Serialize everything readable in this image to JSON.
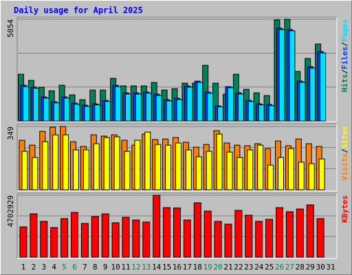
{
  "chart_data": {
    "type": "bar",
    "title": "Daily usage for April 2025",
    "categories": [
      "1",
      "2",
      "3",
      "4",
      "5",
      "6",
      "7",
      "8",
      "9",
      "10",
      "11",
      "12",
      "13",
      "14",
      "15",
      "16",
      "17",
      "18",
      "19",
      "20",
      "21",
      "22",
      "23",
      "24",
      "25",
      "26",
      "27",
      "28",
      "29",
      "30",
      "31"
    ],
    "category_colors": [
      "#000000",
      "#000000",
      "#000000",
      "#000000",
      "#00805c",
      "#00805c",
      "#000000",
      "#000000",
      "#000000",
      "#000000",
      "#000000",
      "#00805c",
      "#00805c",
      "#000000",
      "#000000",
      "#000000",
      "#000000",
      "#000000",
      "#00805c",
      "#00805c",
      "#000000",
      "#000000",
      "#000000",
      "#000000",
      "#000000",
      "#00805c",
      "#00805c",
      "#000000",
      "#000000",
      "#000000",
      "#000000"
    ],
    "legend_separator": "/",
    "panels": [
      {
        "ylim": [
          0,
          5054
        ],
        "yticks": [
          5054
        ],
        "series": [
          {
            "name": "Pages",
            "color": "#00e0ff",
            "values": [
              1710,
              1630,
              1140,
              900,
              1140,
              830,
              730,
              800,
              970,
              1710,
              1340,
              1340,
              1380,
              1270,
              1000,
              1070,
              1680,
              1920,
              1380,
              700,
              1650,
              1340,
              970,
              800,
              760,
              4542,
              4480,
              1920,
              2630,
              3380,
              null
            ]
          },
          {
            "name": "Files",
            "color": "#0040ff",
            "values": [
              1776,
              1690,
              1195,
              956,
              1195,
              888,
              785,
              854,
              1025,
              1776,
              1400,
              1400,
              1435,
              1332,
              1059,
              1127,
              1742,
              1980,
              1435,
              751,
              1708,
              1400,
              1025,
              854,
              820,
              4610,
              4542,
              1980,
              2698,
              3449,
              null
            ]
          },
          {
            "name": "Hits",
            "color": "#00805c",
            "values": [
              2322,
              2015,
              1673,
              1503,
              1776,
              1298,
              1059,
              1537,
              1537,
              2117,
              1742,
              1742,
              1742,
              1912,
              1537,
              1605,
              1878,
              1878,
              2766,
              1878,
              1332,
              2322,
              1571,
              1400,
              1264,
              5020,
              5054,
              2459,
              3108,
              3825,
              null
            ]
          }
        ]
      },
      {
        "ylim": [
          0,
          349
        ],
        "yticks": [
          349
        ],
        "series": [
          {
            "name": "Sites",
            "color": "#ffff00",
            "values": [
              212,
              178,
              265,
              303,
              303,
              220,
              220,
              254,
              288,
              292,
              212,
              273,
              318,
              250,
              246,
              258,
              220,
              182,
              212,
              307,
              208,
              178,
              220,
              246,
              136,
              178,
              227,
              152,
              144,
              170,
              null
            ]
          },
          {
            "name": "Visits",
            "color": "#ff8000",
            "values": [
              273,
              246,
              322,
              345,
              349,
              265,
              239,
              303,
              296,
              303,
              273,
              246,
              307,
              277,
              280,
              288,
              262,
              235,
              250,
              326,
              258,
              246,
              243,
              254,
              227,
              269,
              243,
              280,
              254,
              239,
              null
            ]
          }
        ]
      },
      {
        "ylim": [
          0,
          4702929
        ],
        "yticks": [
          4702929
        ],
        "series": [
          {
            "name": "KBytes",
            "color": "#ff0000",
            "values": [
              2299220,
              3292070,
              2717260,
              2246970,
              2926280,
              3396580,
              2560500,
              3083050,
              3292070,
              2612750,
              3030790,
              2821770,
              2665010,
              4702929,
              3762360,
              3740000,
              2821770,
              4128150,
              3501090,
              2717260,
              2508240,
              3553340,
              3187560,
              2717260,
              2874030,
              3762360,
              3448830,
              3657850,
              3971380,
              2926280,
              null
            ]
          }
        ]
      }
    ]
  }
}
